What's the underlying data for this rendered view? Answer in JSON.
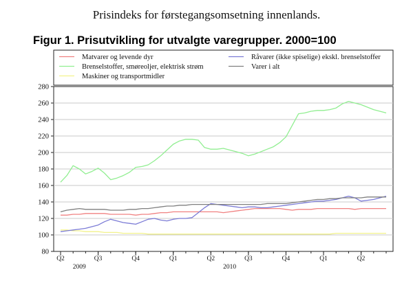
{
  "header": {
    "title": "Prisindeks for førstegangsomsetning innenlands."
  },
  "chart_data": {
    "type": "line",
    "title": "Figur 1. Prisutvikling for utvalgte varegrupper. 2000=100",
    "ylim": [
      80,
      280
    ],
    "yticks": [
      80,
      100,
      120,
      140,
      160,
      180,
      200,
      220,
      240,
      260,
      280
    ],
    "grid": true,
    "legend_position": "top",
    "quarter_labels": [
      {
        "label": "Q2",
        "index": 0
      },
      {
        "label": "Q3",
        "index": 6
      },
      {
        "label": "Q4",
        "index": 12
      },
      {
        "label": "Q1",
        "index": 18
      },
      {
        "label": "Q2",
        "index": 24
      },
      {
        "label": "Q3",
        "index": 30
      },
      {
        "label": "Q4",
        "index": 36
      },
      {
        "label": "Q1",
        "index": 42
      },
      {
        "label": "Q2",
        "index": 48
      }
    ],
    "year_labels": [
      {
        "label": "2009",
        "index": 3
      },
      {
        "label": "2010",
        "index": 27
      }
    ],
    "series": [
      {
        "name": "Matvarer og levende dyr",
        "color": "#f08080",
        "values": [
          124,
          124,
          125,
          125,
          126,
          126,
          126,
          126,
          125,
          125,
          125,
          125,
          124,
          125,
          125,
          126,
          127,
          127,
          128,
          128,
          128,
          128,
          128,
          128,
          128,
          128,
          127,
          128,
          129,
          130,
          131,
          132,
          132,
          132,
          132,
          132,
          131,
          130,
          131,
          131,
          131,
          132,
          132,
          132,
          132,
          132,
          132,
          131,
          132,
          132,
          132,
          132,
          132
        ]
      },
      {
        "name": "Brenselstoffer, smøreoljer, elektrisk strøm",
        "color": "#90ee90",
        "values": [
          164,
          172,
          184,
          180,
          174,
          177,
          181,
          175,
          167,
          169,
          172,
          176,
          182,
          183,
          185,
          190,
          196,
          203,
          210,
          214,
          216,
          216,
          215,
          206,
          204,
          204,
          205,
          203,
          201,
          199,
          196,
          198,
          201,
          204,
          207,
          212,
          219,
          233,
          247,
          248,
          250,
          251,
          251,
          252,
          254,
          259,
          262,
          260,
          258,
          255,
          252,
          250,
          248
        ]
      },
      {
        "name": "Maskiner og transportmidler",
        "color": "#f2f28a",
        "values": [
          106,
          106,
          105,
          105,
          104,
          104,
          104,
          103,
          103,
          103,
          102,
          102,
          102,
          102,
          101,
          101,
          101,
          101,
          101,
          101,
          101,
          101,
          101,
          101,
          101,
          101,
          101,
          101,
          101,
          101,
          101,
          101,
          101,
          101,
          101,
          101,
          101,
          101,
          101,
          101,
          101,
          101,
          101,
          101,
          102,
          102,
          102,
          102,
          102,
          102,
          102,
          102,
          102
        ]
      },
      {
        "name": "Råvarer (ikke spiselige) ekskl. brenselstoffer",
        "color": "#7b7bd6",
        "values": [
          104,
          105,
          106,
          107,
          108,
          110,
          112,
          116,
          119,
          117,
          115,
          114,
          113,
          116,
          119,
          120,
          118,
          117,
          119,
          120,
          120,
          121,
          127,
          133,
          138,
          137,
          136,
          135,
          134,
          133,
          134,
          134,
          133,
          133,
          134,
          135,
          136,
          137,
          138,
          139,
          140,
          141,
          141,
          142,
          143,
          145,
          147,
          145,
          141,
          142,
          143,
          145,
          147
        ]
      },
      {
        "name": "Varer i alt",
        "color": "#7f7f7f",
        "values": [
          128,
          130,
          131,
          132,
          131,
          131,
          131,
          131,
          130,
          130,
          130,
          131,
          131,
          132,
          132,
          133,
          134,
          135,
          135,
          136,
          136,
          137,
          137,
          137,
          137,
          137,
          137,
          137,
          137,
          137,
          137,
          137,
          137,
          138,
          138,
          138,
          138,
          139,
          140,
          141,
          142,
          143,
          143,
          144,
          144,
          145,
          145,
          145,
          145,
          146,
          146,
          146,
          146
        ]
      }
    ]
  }
}
